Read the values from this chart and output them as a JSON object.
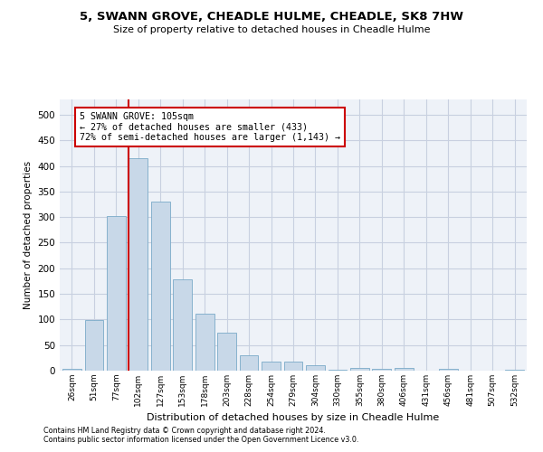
{
  "title": "5, SWANN GROVE, CHEADLE HULME, CHEADLE, SK8 7HW",
  "subtitle": "Size of property relative to detached houses in Cheadle Hulme",
  "xlabel": "Distribution of detached houses by size in Cheadle Hulme",
  "ylabel": "Number of detached properties",
  "bar_color": "#c8d8e8",
  "bar_edge_color": "#7aaac8",
  "grid_color": "#c8d0e0",
  "bg_color": "#eef2f8",
  "categories": [
    "26sqm",
    "51sqm",
    "77sqm",
    "102sqm",
    "127sqm",
    "153sqm",
    "178sqm",
    "203sqm",
    "228sqm",
    "254sqm",
    "279sqm",
    "304sqm",
    "330sqm",
    "355sqm",
    "380sqm",
    "406sqm",
    "431sqm",
    "456sqm",
    "481sqm",
    "507sqm",
    "532sqm"
  ],
  "values": [
    3,
    99,
    302,
    415,
    330,
    178,
    112,
    75,
    30,
    18,
    18,
    10,
    1,
    5,
    4,
    6,
    0,
    3,
    0,
    0,
    2
  ],
  "property_line_color": "#cc0000",
  "annotation_text": "5 SWANN GROVE: 105sqm\n← 27% of detached houses are smaller (433)\n72% of semi-detached houses are larger (1,143) →",
  "annotation_box_color": "#cc0000",
  "footnote1": "Contains HM Land Registry data © Crown copyright and database right 2024.",
  "footnote2": "Contains public sector information licensed under the Open Government Licence v3.0.",
  "ylim": [
    0,
    530
  ],
  "yticks": [
    0,
    50,
    100,
    150,
    200,
    250,
    300,
    350,
    400,
    450,
    500
  ]
}
